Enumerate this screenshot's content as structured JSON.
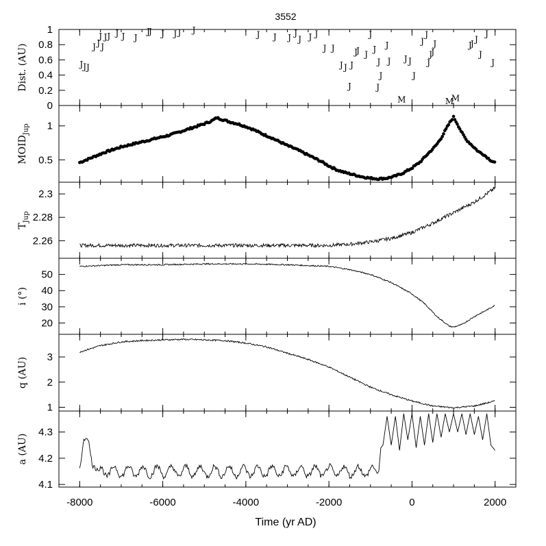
{
  "chart_data": [
    {
      "type": "scatter",
      "panel": "encounters",
      "title": "3552",
      "ylabel": "Dist. (AU)",
      "ylim": [
        0,
        1
      ],
      "yticks": [
        "0",
        "0.2",
        "0.4",
        "0.6",
        "0.8",
        "1"
      ],
      "marker_label_jupiter": "J",
      "marker_label_mars": "M",
      "jupiter_points": [
        {
          "x": -7960,
          "y": 0.55
        },
        {
          "x": -7880,
          "y": 0.52
        },
        {
          "x": -7800,
          "y": 0.51
        },
        {
          "x": -7650,
          "y": 0.78
        },
        {
          "x": -7550,
          "y": 0.83
        },
        {
          "x": -7500,
          "y": 0.92
        },
        {
          "x": -7450,
          "y": 0.78
        },
        {
          "x": -7380,
          "y": 0.91
        },
        {
          "x": -7300,
          "y": 0.92
        },
        {
          "x": -7100,
          "y": 0.96
        },
        {
          "x": -6950,
          "y": 0.92
        },
        {
          "x": -6650,
          "y": 0.9
        },
        {
          "x": -6350,
          "y": 0.98
        },
        {
          "x": -6300,
          "y": 0.98
        },
        {
          "x": -6000,
          "y": 0.95
        },
        {
          "x": -5700,
          "y": 0.95
        },
        {
          "x": -5600,
          "y": 0.97
        },
        {
          "x": -5250,
          "y": 1.0
        },
        {
          "x": -3700,
          "y": 0.94
        },
        {
          "x": -3300,
          "y": 0.91
        },
        {
          "x": -2950,
          "y": 0.9
        },
        {
          "x": -2800,
          "y": 0.96
        },
        {
          "x": -2700,
          "y": 0.88
        },
        {
          "x": -2450,
          "y": 0.91
        },
        {
          "x": -2300,
          "y": 0.95
        },
        {
          "x": -2100,
          "y": 0.76
        },
        {
          "x": -1900,
          "y": 0.76
        },
        {
          "x": -1700,
          "y": 0.54
        },
        {
          "x": -1600,
          "y": 0.51
        },
        {
          "x": -1450,
          "y": 0.54
        },
        {
          "x": -1350,
          "y": 0.71
        },
        {
          "x": -1300,
          "y": 0.73
        },
        {
          "x": -1500,
          "y": 0.26
        },
        {
          "x": -1000,
          "y": 0.94
        },
        {
          "x": -900,
          "y": 0.75
        },
        {
          "x": -1100,
          "y": 0.68
        },
        {
          "x": -800,
          "y": 0.58
        },
        {
          "x": -750,
          "y": 0.4
        },
        {
          "x": -820,
          "y": 0.25
        },
        {
          "x": -550,
          "y": 0.59
        },
        {
          "x": -600,
          "y": 0.8
        },
        {
          "x": -150,
          "y": 0.62
        },
        {
          "x": -50,
          "y": 0.59
        },
        {
          "x": 50,
          "y": 0.4
        },
        {
          "x": 250,
          "y": 0.85
        },
        {
          "x": 350,
          "y": 0.94
        },
        {
          "x": 400,
          "y": 0.57
        },
        {
          "x": 450,
          "y": 0.68
        },
        {
          "x": 500,
          "y": 0.71
        },
        {
          "x": 550,
          "y": 0.82
        },
        {
          "x": 1400,
          "y": 0.8
        },
        {
          "x": 1450,
          "y": 0.82
        },
        {
          "x": 1550,
          "y": 0.88
        },
        {
          "x": 1650,
          "y": 0.68
        },
        {
          "x": 1800,
          "y": 0.95
        },
        {
          "x": 1950,
          "y": 0.57
        }
      ],
      "mars_points": [
        {
          "x": -250,
          "y": 0.03
        },
        {
          "x": 900,
          "y": 0.01
        },
        {
          "x": 1050,
          "y": 0.05
        }
      ]
    },
    {
      "type": "scatter",
      "panel": "moid",
      "ylabel": "MOID",
      "ylabel_subscript": "Jup",
      "ylim": [
        0.17,
        1.3
      ],
      "yticks": [
        "0.5",
        "1"
      ],
      "x": [
        -8000,
        -7800,
        -7600,
        -7400,
        -7200,
        -7000,
        -6800,
        -6600,
        -6400,
        -6200,
        -6000,
        -5800,
        -5600,
        -5400,
        -5200,
        -5000,
        -4800,
        -4700,
        -4600,
        -4400,
        -4200,
        -4000,
        -3800,
        -3600,
        -3400,
        -3200,
        -3000,
        -2800,
        -2600,
        -2400,
        -2200,
        -2000,
        -1800,
        -1600,
        -1400,
        -1200,
        -1000,
        -800,
        -600,
        -400,
        -200,
        0,
        200,
        400,
        500,
        600,
        700,
        800,
        900,
        1000,
        1100,
        1200,
        1300,
        1400,
        1500,
        1600,
        1700,
        1800,
        1900,
        2000
      ],
      "values": [
        0.46,
        0.51,
        0.56,
        0.61,
        0.65,
        0.69,
        0.72,
        0.75,
        0.78,
        0.81,
        0.84,
        0.87,
        0.91,
        0.95,
        0.99,
        1.03,
        1.08,
        1.12,
        1.1,
        1.06,
        1.03,
        0.99,
        0.94,
        0.88,
        0.83,
        0.77,
        0.71,
        0.66,
        0.6,
        0.54,
        0.48,
        0.41,
        0.35,
        0.31,
        0.28,
        0.25,
        0.23,
        0.22,
        0.23,
        0.26,
        0.31,
        0.38,
        0.47,
        0.6,
        0.66,
        0.73,
        0.82,
        0.93,
        1.04,
        1.13,
        1.02,
        0.9,
        0.8,
        0.74,
        0.68,
        0.62,
        0.59,
        0.54,
        0.49,
        0.46
      ]
    },
    {
      "type": "line",
      "panel": "tisserand",
      "ylabel": "T",
      "ylabel_subscript": "Jup",
      "ylim": [
        2.245,
        2.31
      ],
      "yticks": [
        "2.26",
        "2.28",
        "2.3"
      ],
      "x": [
        -8000,
        -7000,
        -6000,
        -5000,
        -4000,
        -3000,
        -2000,
        -1500,
        -1000,
        -500,
        0,
        500,
        1000,
        1500,
        2000
      ],
      "values": [
        2.256,
        2.256,
        2.256,
        2.256,
        2.256,
        2.256,
        2.256,
        2.257,
        2.259,
        2.262,
        2.267,
        2.275,
        2.284,
        2.293,
        2.305
      ]
    },
    {
      "type": "line",
      "panel": "inclination",
      "ylabel": "i (°)",
      "ylim": [
        13,
        60
      ],
      "yticks": [
        "20",
        "30",
        "40",
        "50"
      ],
      "x": [
        -8000,
        -7000,
        -6000,
        -5000,
        -4000,
        -3000,
        -2000,
        -1500,
        -1000,
        -500,
        0,
        300,
        600,
        900,
        1000,
        1200,
        1500,
        1800,
        2000
      ],
      "values": [
        55,
        56,
        56,
        56.5,
        56.5,
        56,
        55,
        53,
        50,
        45,
        38,
        32,
        24,
        18,
        17.5,
        19,
        24,
        28,
        31
      ]
    },
    {
      "type": "line",
      "panel": "perihelion",
      "ylabel": "q (AU)",
      "ylim": [
        0.85,
        3.9
      ],
      "yticks": [
        "1",
        "2",
        "3"
      ],
      "x": [
        -8000,
        -7500,
        -7000,
        -6500,
        -6000,
        -5500,
        -5000,
        -4500,
        -4000,
        -3500,
        -3000,
        -2500,
        -2000,
        -1500,
        -1000,
        -500,
        0,
        500,
        1000,
        1500,
        2000
      ],
      "values": [
        3.2,
        3.45,
        3.6,
        3.65,
        3.68,
        3.7,
        3.68,
        3.65,
        3.55,
        3.4,
        3.15,
        2.9,
        2.6,
        2.2,
        1.8,
        1.5,
        1.25,
        1.05,
        0.98,
        1.05,
        1.25
      ]
    },
    {
      "type": "line",
      "panel": "semimajor_axis",
      "ylabel": "a (AU)",
      "xlabel": "Time (yr AD)",
      "ylim": [
        4.09,
        4.38
      ],
      "yticks": [
        "4.1",
        "4.2",
        "4.3"
      ],
      "xlim": [
        -8500,
        2500
      ],
      "xticks": [
        "-8000",
        "-6000",
        "-4000",
        "-2000",
        "0",
        "2000"
      ],
      "x": [
        -8000,
        -7900,
        -7800,
        -7700,
        -7600,
        -7500,
        -7000,
        -6500,
        -6000,
        -5500,
        -5000,
        -4500,
        -4000,
        -3500,
        -3000,
        -2500,
        -2000,
        -1500,
        -1000,
        -800,
        -750,
        -700,
        -600,
        -500,
        -400,
        -300,
        -200,
        -100,
        0,
        100,
        200,
        300,
        400,
        500,
        600,
        700,
        800,
        900,
        1000,
        1100,
        1200,
        1300,
        1400,
        1500,
        1600,
        1700,
        1800,
        1900,
        2000
      ],
      "values": [
        4.18,
        4.25,
        4.27,
        4.2,
        4.16,
        4.13,
        4.15,
        4.15,
        4.15,
        4.15,
        4.15,
        4.15,
        4.15,
        4.15,
        4.15,
        4.15,
        4.15,
        4.15,
        4.15,
        4.15,
        4.24,
        4.25,
        4.36,
        4.25,
        4.36,
        4.23,
        4.37,
        4.27,
        4.37,
        4.24,
        4.36,
        4.25,
        4.37,
        4.26,
        4.37,
        4.28,
        4.37,
        4.3,
        4.37,
        4.3,
        4.37,
        4.29,
        4.37,
        4.29,
        4.36,
        4.27,
        4.37,
        4.25,
        4.23
      ]
    }
  ]
}
